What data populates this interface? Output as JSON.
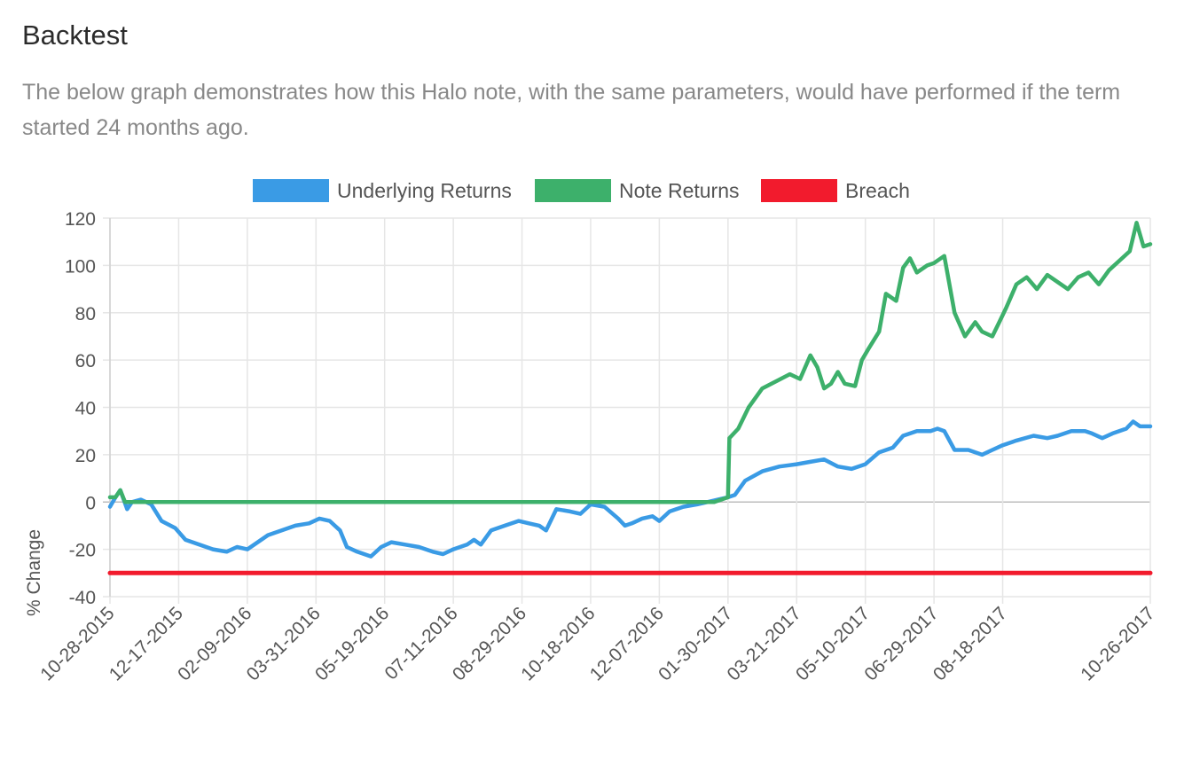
{
  "section": {
    "title": "Backtest",
    "description": "The below graph demonstrates how this Halo note, with the same parameters, would have performed if the term started 24 months ago."
  },
  "chart_data": {
    "type": "line",
    "ylabel": "% Change",
    "xlabel": "",
    "ylim": [
      -40,
      120
    ],
    "yticks": [
      120,
      100,
      80,
      60,
      40,
      20,
      0,
      -20,
      -40
    ],
    "grid": true,
    "legend_position": "top",
    "x_tick_labels": [
      "10-28-2015",
      "12-17-2015",
      "02-09-2016",
      "03-31-2016",
      "05-19-2016",
      "07-11-2016",
      "08-29-2016",
      "10-18-2016",
      "12-07-2016",
      "01-30-2017",
      "03-21-2017",
      "05-10-2017",
      "06-29-2017",
      "08-18-2017",
      "10-26-2017"
    ],
    "series": [
      {
        "name": "Underlying Returns",
        "color": "#3a9be5",
        "points": [
          [
            0,
            -2
          ],
          [
            0.08,
            2
          ],
          [
            0.15,
            5
          ],
          [
            0.25,
            -3
          ],
          [
            0.32,
            0
          ],
          [
            0.45,
            1
          ],
          [
            0.6,
            -1
          ],
          [
            0.75,
            -8
          ],
          [
            0.95,
            -11
          ],
          [
            1.1,
            -16
          ],
          [
            1.3,
            -18
          ],
          [
            1.5,
            -20
          ],
          [
            1.7,
            -21
          ],
          [
            1.85,
            -19
          ],
          [
            2.0,
            -20
          ],
          [
            2.15,
            -17
          ],
          [
            2.3,
            -14
          ],
          [
            2.5,
            -12
          ],
          [
            2.7,
            -10
          ],
          [
            2.9,
            -9
          ],
          [
            3.05,
            -7
          ],
          [
            3.2,
            -8
          ],
          [
            3.35,
            -12
          ],
          [
            3.45,
            -19
          ],
          [
            3.6,
            -21
          ],
          [
            3.8,
            -23
          ],
          [
            3.95,
            -19
          ],
          [
            4.1,
            -17
          ],
          [
            4.3,
            -18
          ],
          [
            4.5,
            -19
          ],
          [
            4.7,
            -21
          ],
          [
            4.85,
            -22
          ],
          [
            5.0,
            -20
          ],
          [
            5.2,
            -18
          ],
          [
            5.3,
            -16
          ],
          [
            5.4,
            -18
          ],
          [
            5.55,
            -12
          ],
          [
            5.75,
            -10
          ],
          [
            5.95,
            -8
          ],
          [
            6.1,
            -9
          ],
          [
            6.25,
            -10
          ],
          [
            6.35,
            -12
          ],
          [
            6.5,
            -3
          ],
          [
            6.7,
            -4
          ],
          [
            6.85,
            -5
          ],
          [
            7.0,
            -1
          ],
          [
            7.2,
            -2
          ],
          [
            7.4,
            -7
          ],
          [
            7.5,
            -10
          ],
          [
            7.6,
            -9
          ],
          [
            7.75,
            -7
          ],
          [
            7.9,
            -6
          ],
          [
            8.0,
            -8
          ],
          [
            8.15,
            -4
          ],
          [
            8.35,
            -2
          ],
          [
            8.55,
            -1
          ],
          [
            8.7,
            0
          ],
          [
            8.85,
            1
          ],
          [
            9.0,
            2
          ],
          [
            9.1,
            3
          ],
          [
            9.25,
            9
          ],
          [
            9.5,
            13
          ],
          [
            9.75,
            15
          ],
          [
            10.0,
            16
          ],
          [
            10.2,
            17
          ],
          [
            10.4,
            18
          ],
          [
            10.6,
            15
          ],
          [
            10.8,
            14
          ],
          [
            11.0,
            16
          ],
          [
            11.2,
            21
          ],
          [
            11.4,
            23
          ],
          [
            11.55,
            28
          ],
          [
            11.75,
            30
          ],
          [
            11.95,
            30
          ],
          [
            12.05,
            31
          ],
          [
            12.15,
            30
          ],
          [
            12.3,
            22
          ],
          [
            12.5,
            22
          ],
          [
            12.7,
            20
          ],
          [
            12.85,
            22
          ],
          [
            13.0,
            24
          ],
          [
            13.2,
            26
          ],
          [
            13.45,
            28
          ],
          [
            13.65,
            27
          ],
          [
            13.8,
            28
          ],
          [
            14.0,
            30
          ],
          [
            14.2,
            30
          ],
          [
            14.3,
            29
          ],
          [
            14.45,
            27
          ],
          [
            14.6,
            29
          ],
          [
            14.8,
            31
          ],
          [
            14.9,
            34
          ],
          [
            15.0,
            32
          ],
          [
            15.15,
            32
          ]
        ]
      },
      {
        "name": "Note Returns",
        "color": "#3db06b",
        "points": [
          [
            0,
            2
          ],
          [
            0.08,
            2
          ],
          [
            0.15,
            5
          ],
          [
            0.22,
            0
          ],
          [
            1.0,
            0
          ],
          [
            3.0,
            0
          ],
          [
            5.0,
            0
          ],
          [
            7.0,
            0
          ],
          [
            8.5,
            0
          ],
          [
            8.8,
            0
          ],
          [
            9.0,
            2
          ],
          [
            9.02,
            27
          ],
          [
            9.15,
            31
          ],
          [
            9.3,
            40
          ],
          [
            9.5,
            48
          ],
          [
            9.7,
            51
          ],
          [
            9.9,
            54
          ],
          [
            10.05,
            52
          ],
          [
            10.2,
            62
          ],
          [
            10.3,
            57
          ],
          [
            10.4,
            48
          ],
          [
            10.5,
            50
          ],
          [
            10.6,
            55
          ],
          [
            10.7,
            50
          ],
          [
            10.85,
            49
          ],
          [
            10.95,
            60
          ],
          [
            11.05,
            65
          ],
          [
            11.2,
            72
          ],
          [
            11.3,
            88
          ],
          [
            11.45,
            85
          ],
          [
            11.55,
            99
          ],
          [
            11.65,
            103
          ],
          [
            11.75,
            97
          ],
          [
            11.9,
            100
          ],
          [
            12.0,
            101
          ],
          [
            12.15,
            104
          ],
          [
            12.3,
            80
          ],
          [
            12.45,
            70
          ],
          [
            12.6,
            76
          ],
          [
            12.7,
            72
          ],
          [
            12.85,
            70
          ],
          [
            12.95,
            76
          ],
          [
            13.05,
            82
          ],
          [
            13.2,
            92
          ],
          [
            13.35,
            95
          ],
          [
            13.5,
            90
          ],
          [
            13.65,
            96
          ],
          [
            13.8,
            93
          ],
          [
            13.95,
            90
          ],
          [
            14.1,
            95
          ],
          [
            14.25,
            97
          ],
          [
            14.4,
            92
          ],
          [
            14.55,
            98
          ],
          [
            14.7,
            102
          ],
          [
            14.85,
            106
          ],
          [
            14.95,
            118
          ],
          [
            15.05,
            108
          ],
          [
            15.15,
            109
          ]
        ]
      },
      {
        "name": "Breach",
        "color": "#f21b2d",
        "points": [
          [
            0,
            -30
          ],
          [
            15.15,
            -30
          ]
        ]
      }
    ]
  }
}
